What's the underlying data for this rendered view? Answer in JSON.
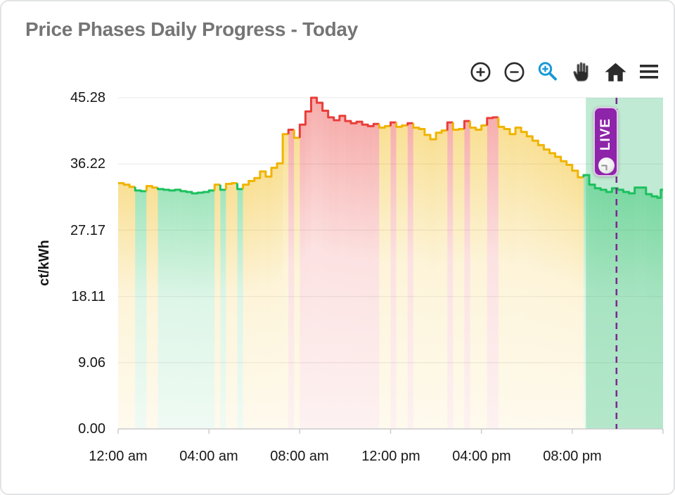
{
  "card": {
    "title": "Price Phases Daily Progress - Today"
  },
  "toolbar": {
    "items": [
      {
        "id": "zoom-in",
        "icon": "plus-circle-icon"
      },
      {
        "id": "zoom-out",
        "icon": "minus-circle-icon"
      },
      {
        "id": "box-zoom",
        "icon": "magnifier-plus-icon",
        "active": true
      },
      {
        "id": "pan",
        "icon": "hand-icon"
      },
      {
        "id": "reset-view",
        "icon": "home-icon"
      },
      {
        "id": "menu",
        "icon": "hamburger-icon"
      }
    ]
  },
  "colors": {
    "green": "#1cc05e",
    "yellow": "#f0b400",
    "red": "#e93e3a",
    "title_text": "#757575",
    "axis": "#cccccc",
    "grid": "#ededed",
    "tick_text": "#161616",
    "toolbar_icon": "#2b2b2b",
    "toolbar_active": "#1899d6"
  },
  "live": {
    "label": "LIVE",
    "badge_color": "#8e24aa",
    "line_color": "#7b2c8f",
    "region_color": "rgba(46,184,110,0.30)",
    "clock_icon": "clock-icon"
  },
  "chart_data": {
    "type": "area",
    "subtype": "step-area-phases",
    "title": "Price Phases Daily Progress - Today",
    "ylabel": "ct/kWh",
    "ylim": [
      0,
      45.28
    ],
    "xlim_hours": [
      0,
      24
    ],
    "grid": true,
    "ytick_values": [
      45.28,
      36.22,
      27.17,
      18.11,
      9.06,
      0
    ],
    "ytick_labels": [
      "45.28",
      "36.22",
      "27.17",
      "18.11",
      "9.06",
      "0.00"
    ],
    "xtick_hours": [
      0,
      4,
      8,
      12,
      16,
      20
    ],
    "xtick_labels": [
      "12:00 am",
      "04:00 am",
      "08:00 am",
      "12:00 pm",
      "04:00 pm",
      "08:00 pm"
    ],
    "phase_colors": {
      "g": "green",
      "y": "yellow",
      "r": "red"
    },
    "current_time_hour": 21.95,
    "live_region_start_hour": 20.6,
    "points": [
      [
        0.0,
        33.6,
        "y"
      ],
      [
        0.25,
        33.4,
        "y"
      ],
      [
        0.5,
        33.1,
        "y"
      ],
      [
        0.75,
        32.6,
        "g"
      ],
      [
        1.0,
        32.5,
        "g"
      ],
      [
        1.25,
        33.2,
        "y"
      ],
      [
        1.5,
        33.0,
        "y"
      ],
      [
        1.75,
        32.8,
        "g"
      ],
      [
        2.0,
        32.7,
        "g"
      ],
      [
        2.25,
        32.6,
        "g"
      ],
      [
        2.5,
        32.7,
        "g"
      ],
      [
        2.75,
        32.5,
        "g"
      ],
      [
        3.0,
        32.4,
        "g"
      ],
      [
        3.25,
        32.2,
        "g"
      ],
      [
        3.5,
        32.3,
        "g"
      ],
      [
        3.75,
        32.4,
        "g"
      ],
      [
        4.0,
        32.6,
        "g"
      ],
      [
        4.25,
        33.4,
        "y"
      ],
      [
        4.5,
        32.7,
        "g"
      ],
      [
        4.75,
        33.5,
        "y"
      ],
      [
        5.0,
        33.6,
        "y"
      ],
      [
        5.25,
        32.8,
        "g"
      ],
      [
        5.5,
        33.4,
        "y"
      ],
      [
        5.75,
        33.9,
        "y"
      ],
      [
        6.0,
        34.3,
        "y"
      ],
      [
        6.25,
        35.2,
        "y"
      ],
      [
        6.5,
        34.5,
        "y"
      ],
      [
        6.75,
        35.7,
        "y"
      ],
      [
        7.0,
        36.3,
        "y"
      ],
      [
        7.25,
        40.3,
        "y"
      ],
      [
        7.5,
        40.9,
        "r"
      ],
      [
        7.75,
        39.8,
        "y"
      ],
      [
        8.0,
        41.6,
        "r"
      ],
      [
        8.25,
        43.4,
        "r"
      ],
      [
        8.5,
        45.28,
        "r"
      ],
      [
        8.75,
        44.6,
        "r"
      ],
      [
        9.0,
        43.5,
        "r"
      ],
      [
        9.25,
        42.6,
        "r"
      ],
      [
        9.5,
        42.2,
        "r"
      ],
      [
        9.75,
        42.8,
        "r"
      ],
      [
        10.0,
        42.1,
        "r"
      ],
      [
        10.25,
        41.8,
        "r"
      ],
      [
        10.5,
        42.0,
        "r"
      ],
      [
        10.75,
        41.6,
        "r"
      ],
      [
        11.0,
        41.4,
        "r"
      ],
      [
        11.25,
        41.7,
        "r"
      ],
      [
        11.5,
        41.2,
        "y"
      ],
      [
        11.75,
        41.4,
        "y"
      ],
      [
        12.0,
        41.9,
        "r"
      ],
      [
        12.25,
        41.3,
        "y"
      ],
      [
        12.5,
        41.5,
        "y"
      ],
      [
        12.75,
        41.8,
        "r"
      ],
      [
        13.0,
        41.2,
        "y"
      ],
      [
        13.25,
        41.0,
        "y"
      ],
      [
        13.5,
        40.2,
        "y"
      ],
      [
        13.75,
        39.6,
        "y"
      ],
      [
        14.0,
        40.5,
        "y"
      ],
      [
        14.25,
        40.8,
        "y"
      ],
      [
        14.5,
        41.9,
        "r"
      ],
      [
        14.75,
        40.9,
        "y"
      ],
      [
        15.0,
        41.0,
        "y"
      ],
      [
        15.25,
        42.1,
        "r"
      ],
      [
        15.5,
        41.2,
        "y"
      ],
      [
        15.75,
        40.9,
        "y"
      ],
      [
        16.0,
        41.5,
        "y"
      ],
      [
        16.25,
        42.5,
        "r"
      ],
      [
        16.5,
        42.6,
        "r"
      ],
      [
        16.75,
        41.3,
        "y"
      ],
      [
        17.0,
        41.0,
        "y"
      ],
      [
        17.25,
        40.3,
        "y"
      ],
      [
        17.5,
        41.2,
        "y"
      ],
      [
        17.75,
        40.6,
        "y"
      ],
      [
        18.0,
        40.0,
        "y"
      ],
      [
        18.25,
        39.4,
        "y"
      ],
      [
        18.5,
        38.8,
        "y"
      ],
      [
        18.75,
        38.2,
        "y"
      ],
      [
        19.0,
        37.7,
        "y"
      ],
      [
        19.25,
        37.2,
        "y"
      ],
      [
        19.5,
        36.6,
        "y"
      ],
      [
        19.75,
        36.1,
        "y"
      ],
      [
        20.0,
        35.3,
        "y"
      ],
      [
        20.25,
        34.4,
        "y"
      ],
      [
        20.5,
        34.7,
        "g"
      ],
      [
        20.75,
        33.4,
        "g"
      ],
      [
        21.0,
        32.9,
        "g"
      ],
      [
        21.25,
        32.7,
        "g"
      ],
      [
        21.5,
        32.4,
        "g"
      ],
      [
        21.75,
        32.9,
        "g"
      ],
      [
        22.0,
        32.7,
        "g"
      ],
      [
        22.25,
        32.4,
        "g"
      ],
      [
        22.5,
        32.2,
        "g"
      ],
      [
        22.75,
        33.0,
        "g"
      ],
      [
        23.0,
        33.0,
        "g"
      ],
      [
        23.25,
        32.1,
        "g"
      ],
      [
        23.5,
        31.8,
        "g"
      ],
      [
        23.75,
        31.6,
        "g"
      ],
      [
        23.9,
        32.7,
        "g"
      ]
    ]
  }
}
